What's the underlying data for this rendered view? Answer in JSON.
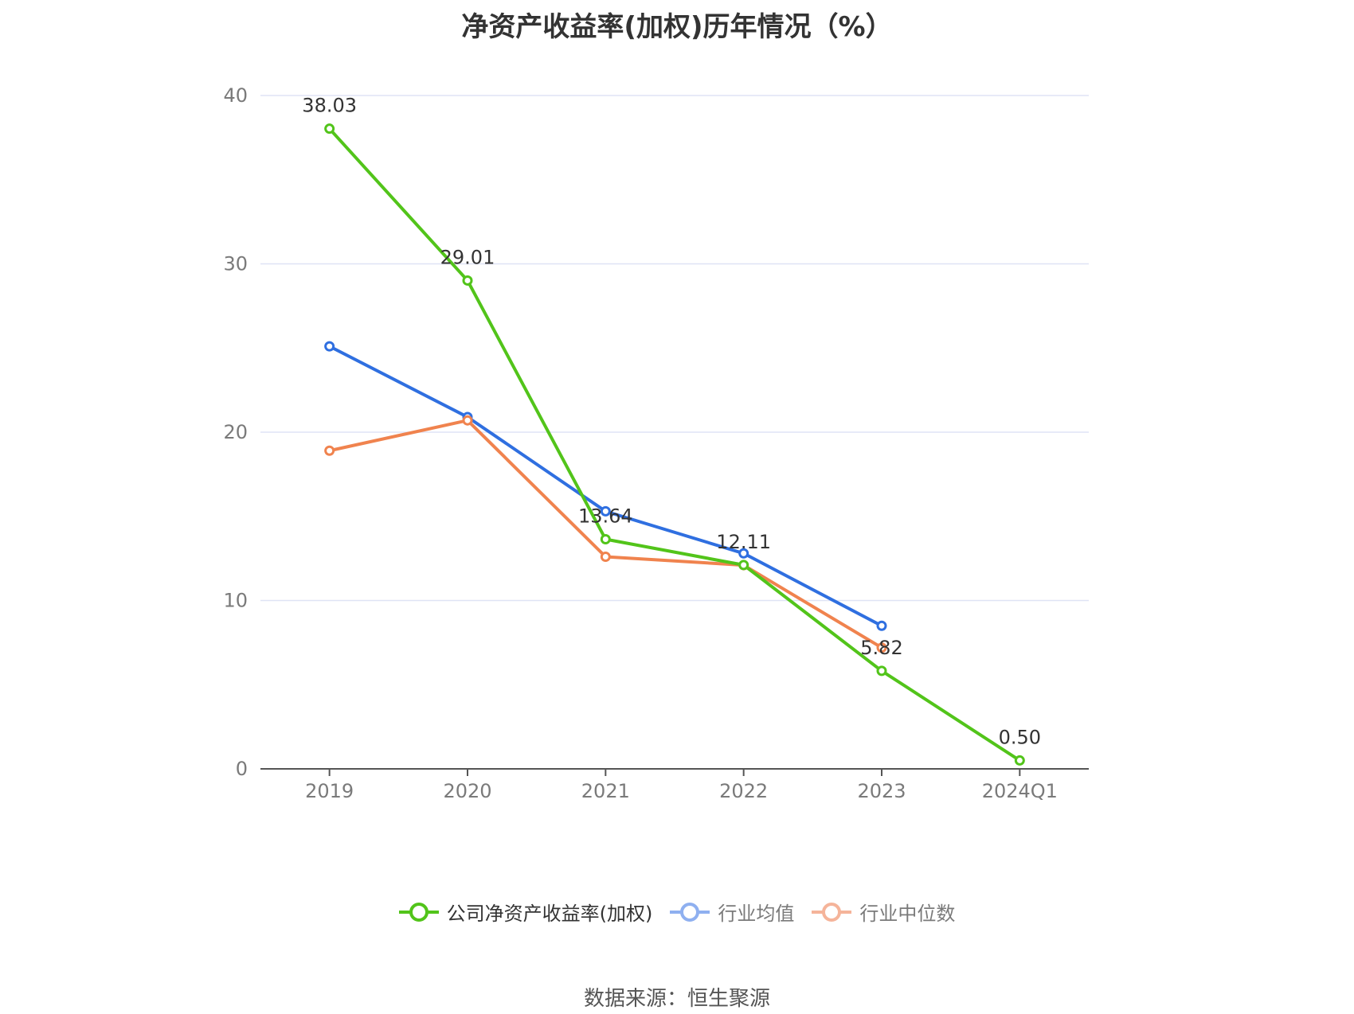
{
  "chart_data": {
    "type": "line",
    "title": "净资产收益率(加权)历年情况（%）",
    "categories": [
      "2019",
      "2020",
      "2021",
      "2022",
      "2023",
      "2024Q1"
    ],
    "ylim": [
      0,
      40
    ],
    "yticks": [
      0,
      10,
      20,
      30,
      40
    ],
    "grid": true,
    "legend_position": "bottom",
    "series": [
      {
        "name": "公司净资产收益率(加权)",
        "color": "#52c41a",
        "values": [
          38.03,
          29.01,
          13.64,
          12.11,
          5.82,
          0.5
        ],
        "labels": [
          "38.03",
          "29.01",
          "13.64",
          "12.11",
          "5.82",
          "0.50"
        ]
      },
      {
        "name": "行业均值",
        "color": "#2f6fe0",
        "values": [
          25.1,
          20.9,
          15.3,
          12.8,
          8.5,
          null
        ]
      },
      {
        "name": "行业中位数",
        "color": "#f0834e",
        "values": [
          18.9,
          20.7,
          12.6,
          12.1,
          7.2,
          null
        ]
      }
    ],
    "legend_colors": [
      "#52c41a",
      "#8fb0f0",
      "#f5b49a"
    ],
    "source": "数据来源：恒生聚源"
  }
}
